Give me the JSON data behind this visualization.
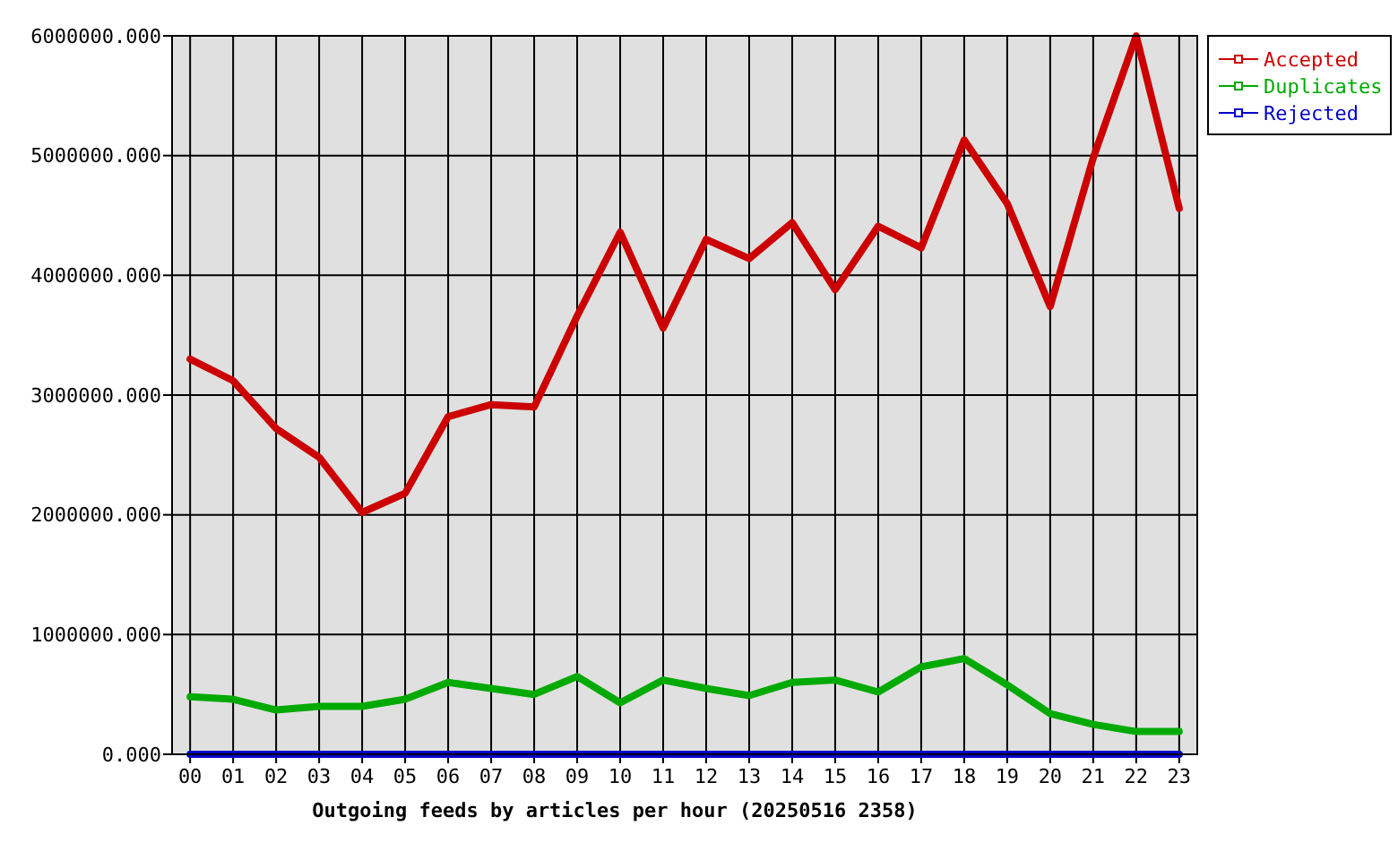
{
  "chart_data": {
    "type": "line",
    "xlabel": "Outgoing feeds by articles per hour (20250516 2358)",
    "categories": [
      "00",
      "01",
      "02",
      "03",
      "04",
      "05",
      "06",
      "07",
      "08",
      "09",
      "10",
      "11",
      "12",
      "13",
      "14",
      "15",
      "16",
      "17",
      "18",
      "19",
      "20",
      "21",
      "22",
      "23"
    ],
    "series": [
      {
        "name": "Accepted",
        "color": "#cc0000",
        "values": [
          3300000,
          3120000,
          2720000,
          2480000,
          2020000,
          2180000,
          2820000,
          2920000,
          2900000,
          3660000,
          4360000,
          3560000,
          4300000,
          4140000,
          4440000,
          3880000,
          4410000,
          4230000,
          5130000,
          4600000,
          3740000,
          4980000,
          6000000,
          4560000
        ]
      },
      {
        "name": "Duplicates",
        "color": "#00aa00",
        "values": [
          480000,
          460000,
          370000,
          400000,
          400000,
          460000,
          600000,
          550000,
          500000,
          650000,
          430000,
          620000,
          550000,
          490000,
          600000,
          620000,
          520000,
          730000,
          800000,
          580000,
          340000,
          250000,
          190000,
          190000
        ]
      },
      {
        "name": "Rejected",
        "color": "#0000cc",
        "values": [
          0,
          0,
          0,
          0,
          0,
          0,
          0,
          0,
          0,
          0,
          0,
          0,
          0,
          0,
          0,
          0,
          0,
          0,
          0,
          0,
          0,
          0,
          0,
          0
        ]
      }
    ],
    "ylim": [
      0,
      6000000
    ],
    "yticks": [
      {
        "value": 0,
        "label": "0.000"
      },
      {
        "value": 1000000,
        "label": "1000000.000"
      },
      {
        "value": 2000000,
        "label": "2000000.000"
      },
      {
        "value": 3000000,
        "label": "3000000.000"
      },
      {
        "value": 4000000,
        "label": "4000000.000"
      },
      {
        "value": 5000000,
        "label": "5000000.000"
      },
      {
        "value": 6000000,
        "label": "6000000.000"
      }
    ],
    "grid": true,
    "legend": "top right"
  }
}
